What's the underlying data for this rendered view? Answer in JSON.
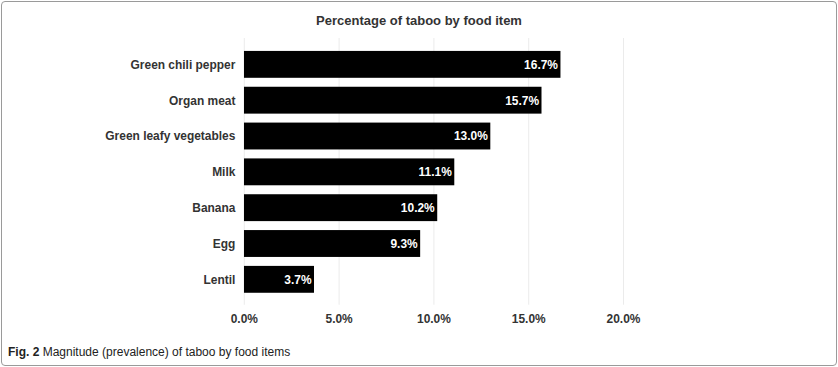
{
  "chart_data": {
    "type": "bar",
    "title": "Percentage of taboo by food item",
    "caption": "Fig. 2 Magnitude (prevalence) of taboo by food items",
    "orientation": "horizontal",
    "categories": [
      "Green chili pepper",
      "Organ meat",
      "Green leafy vegetables",
      "Milk",
      "Banana",
      "Egg",
      "Lentil"
    ],
    "values": [
      16.7,
      15.7,
      13.0,
      11.1,
      10.2,
      9.3,
      3.7
    ],
    "value_labels": [
      "16.7%",
      "15.7%",
      "13.0%",
      "11.1%",
      "10.2%",
      "9.3%",
      "3.7%"
    ],
    "color": "#000000",
    "data_labels": true,
    "grid": true,
    "xlim": [
      0,
      20
    ],
    "xticks": [
      {
        "value": 0,
        "label": "0.0%"
      },
      {
        "value": 5,
        "label": "5.0%"
      },
      {
        "value": 10,
        "label": "10.0%"
      },
      {
        "value": 15,
        "label": "15.0%"
      },
      {
        "value": 20,
        "label": "20.0%"
      }
    ]
  }
}
